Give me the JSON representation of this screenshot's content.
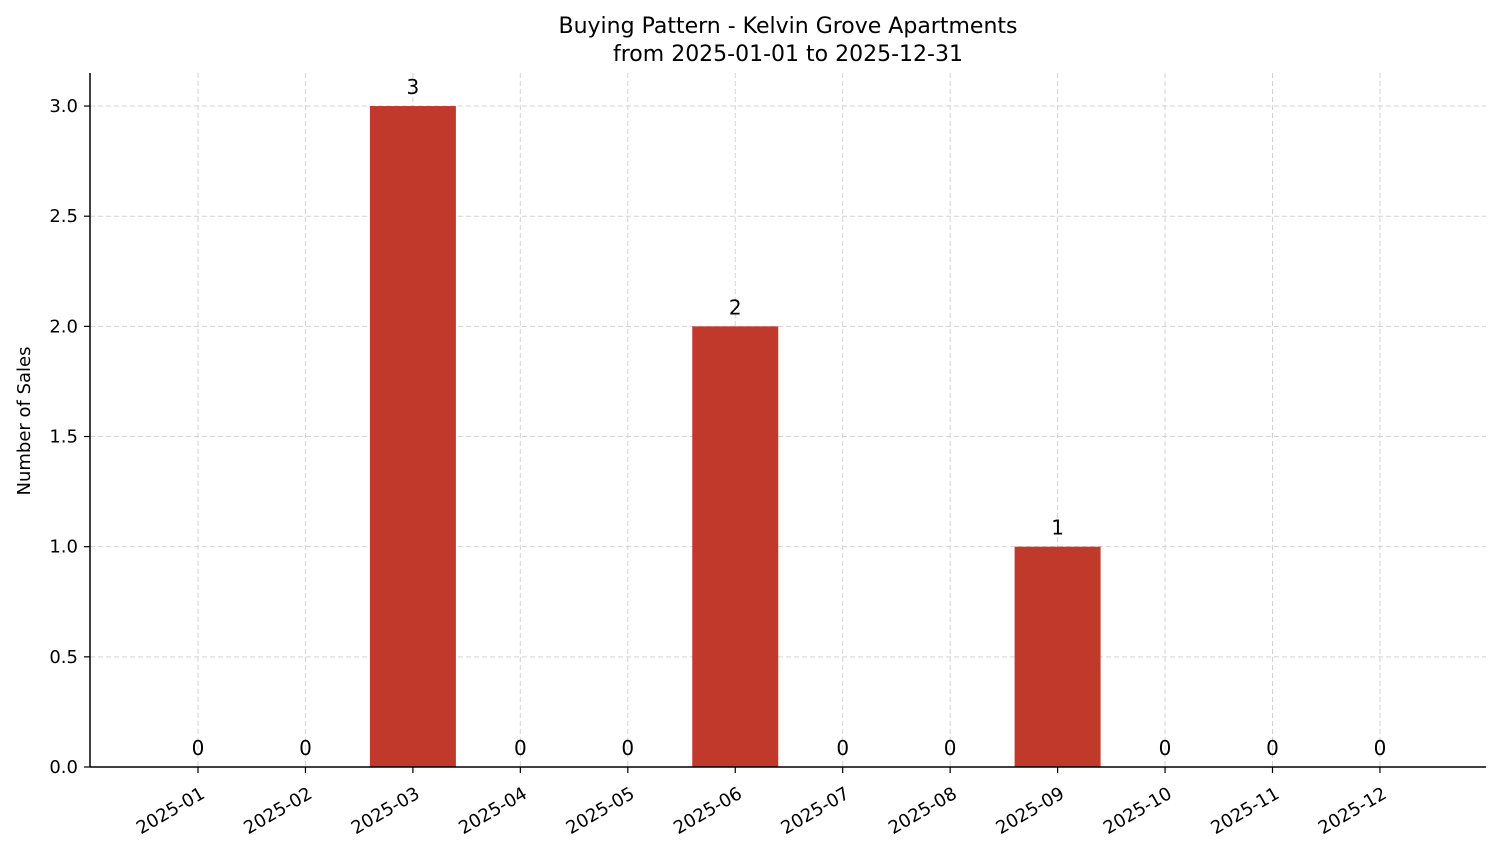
{
  "chart_data": {
    "type": "bar",
    "title": "Buying Pattern - Kelvin Grove Apartments",
    "subtitle": "from 2025-01-01 to 2025-12-31",
    "xlabel": "",
    "ylabel": "Number of Sales",
    "categories": [
      "2025-01",
      "2025-02",
      "2025-03",
      "2025-04",
      "2025-05",
      "2025-06",
      "2025-07",
      "2025-08",
      "2025-09",
      "2025-10",
      "2025-11",
      "2025-12"
    ],
    "values": [
      0,
      0,
      3,
      0,
      0,
      2,
      0,
      0,
      1,
      0,
      0,
      0
    ],
    "data_labels": [
      "0",
      "0",
      "3",
      "0",
      "0",
      "2",
      "0",
      "0",
      "1",
      "0",
      "0",
      "0"
    ],
    "ylim": [
      0,
      3.15
    ],
    "yticks": [
      0.0,
      0.5,
      1.0,
      1.5,
      2.0,
      2.5,
      3.0
    ],
    "ytick_labels": [
      "0.0",
      "0.5",
      "1.0",
      "1.5",
      "2.0",
      "2.5",
      "3.0"
    ],
    "bar_color": "#c0392b",
    "grid": true,
    "legend": false
  }
}
